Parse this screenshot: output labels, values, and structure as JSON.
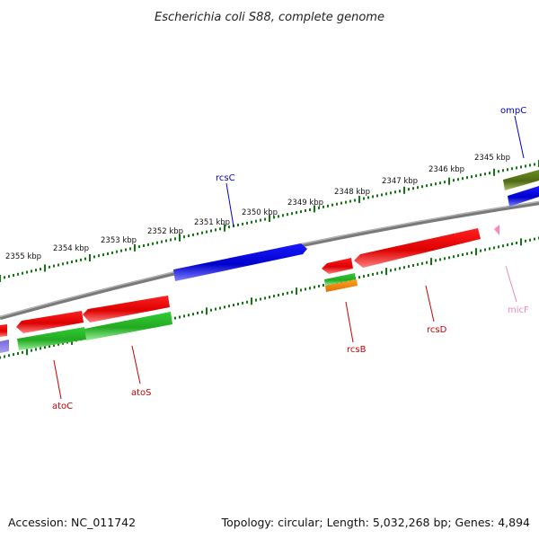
{
  "title": "Escherichia coli S88, complete genome",
  "accession": "Accession: NC_011742",
  "topology": "Topology: circular; Length: 5,032,268 bp; Genes: 4,894",
  "kbp_labels": [
    "2345 kbp",
    "2346 kbp",
    "2347 kbp",
    "2348 kbp",
    "2349 kbp",
    "2350 kbp",
    "2351 kbp",
    "2352 kbp",
    "2353 kbp",
    "2354 kbp",
    "2355 kbp"
  ],
  "genes": [
    {
      "name": "ompC",
      "strand": "-",
      "color": "#1010d0"
    },
    {
      "name": "rcsC",
      "strand": "-",
      "color": "#1010d0"
    },
    {
      "name": "rcsB",
      "strand": "+",
      "color": "#cc0000"
    },
    {
      "name": "rcsD",
      "strand": "+",
      "color": "#cc0000"
    },
    {
      "name": "micF",
      "strand": "+",
      "color": "#ee88bb"
    },
    {
      "name": "atoC",
      "strand": "+",
      "color": "#cc0000"
    },
    {
      "name": "atoS",
      "strand": "+",
      "color": "#cc0000"
    }
  ],
  "colors": {
    "blue_cds": "#0000dd",
    "red_cds": "#ee0000",
    "green_cds": "#22bb22",
    "olive_cds": "#5a7a10",
    "orange_cds": "#ee8800",
    "purple_cds": "#6655cc",
    "pink_rna": "#ff88bb",
    "backbone": "#888888",
    "ticks": "#117711"
  }
}
